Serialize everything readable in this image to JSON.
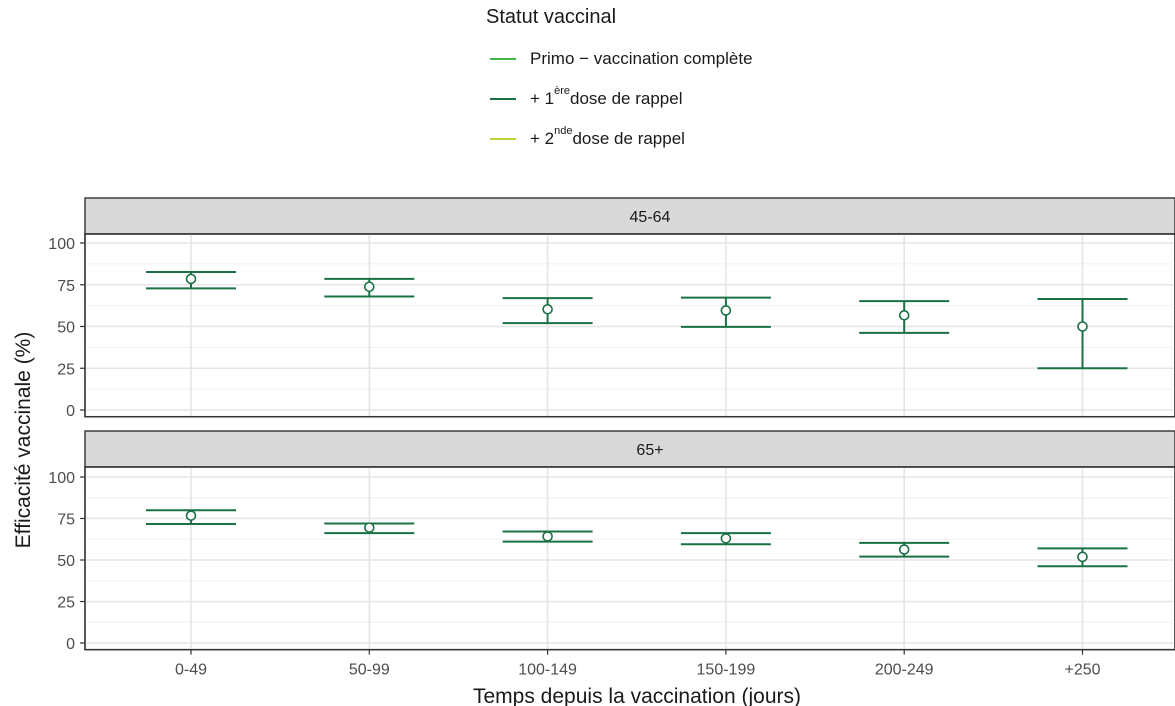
{
  "legend": {
    "title": "Statut vaccinal",
    "items": [
      {
        "prefix": "Primo − vaccination complète",
        "sup": "",
        "suffix": "",
        "color": "#41b548"
      },
      {
        "prefix": "+ 1",
        "sup": "ère",
        "suffix": " dose de rappel",
        "color": "#1a7144"
      },
      {
        "prefix": "+ 2",
        "sup": "nde",
        "suffix": " dose de rappel",
        "color": "#b6d43c"
      }
    ]
  },
  "chart_data": {
    "type": "errorbar",
    "xlabel": "Temps depuis la vaccination (jours)",
    "ylabel": "Efficacité vaccinale (%)",
    "ylim": [
      0,
      105
    ],
    "yticks": [
      0,
      25,
      50,
      75,
      100
    ],
    "grid": true,
    "legend_position": "top",
    "categories": [
      "0-49",
      "50-99",
      "100-149",
      "150-199",
      "200-249",
      "+250"
    ],
    "panels": [
      {
        "label": "45-64",
        "series": [
          {
            "name": "+ 1ère dose de rappel",
            "color": "#1a7144",
            "values": [
              78.5,
              73.8,
              60.3,
              59.6,
              56.7,
              50
            ],
            "lower": [
              72.8,
              68,
              52,
              49.8,
              46.2,
              25
            ],
            "upper": [
              82.6,
              78.5,
              67,
              67.3,
              65.2,
              66.5
            ]
          }
        ]
      },
      {
        "label": "65+",
        "series": [
          {
            "name": "+ 1ère dose de rappel",
            "color": "#1a7144",
            "values": [
              76.7,
              69.5,
              64.2,
              63,
              56.3,
              51.9
            ],
            "lower": [
              71.7,
              66.2,
              61.1,
              59.5,
              52,
              46.2
            ],
            "upper": [
              80,
              72,
              67.2,
              66.2,
              60.3,
              57
            ]
          }
        ]
      }
    ]
  }
}
